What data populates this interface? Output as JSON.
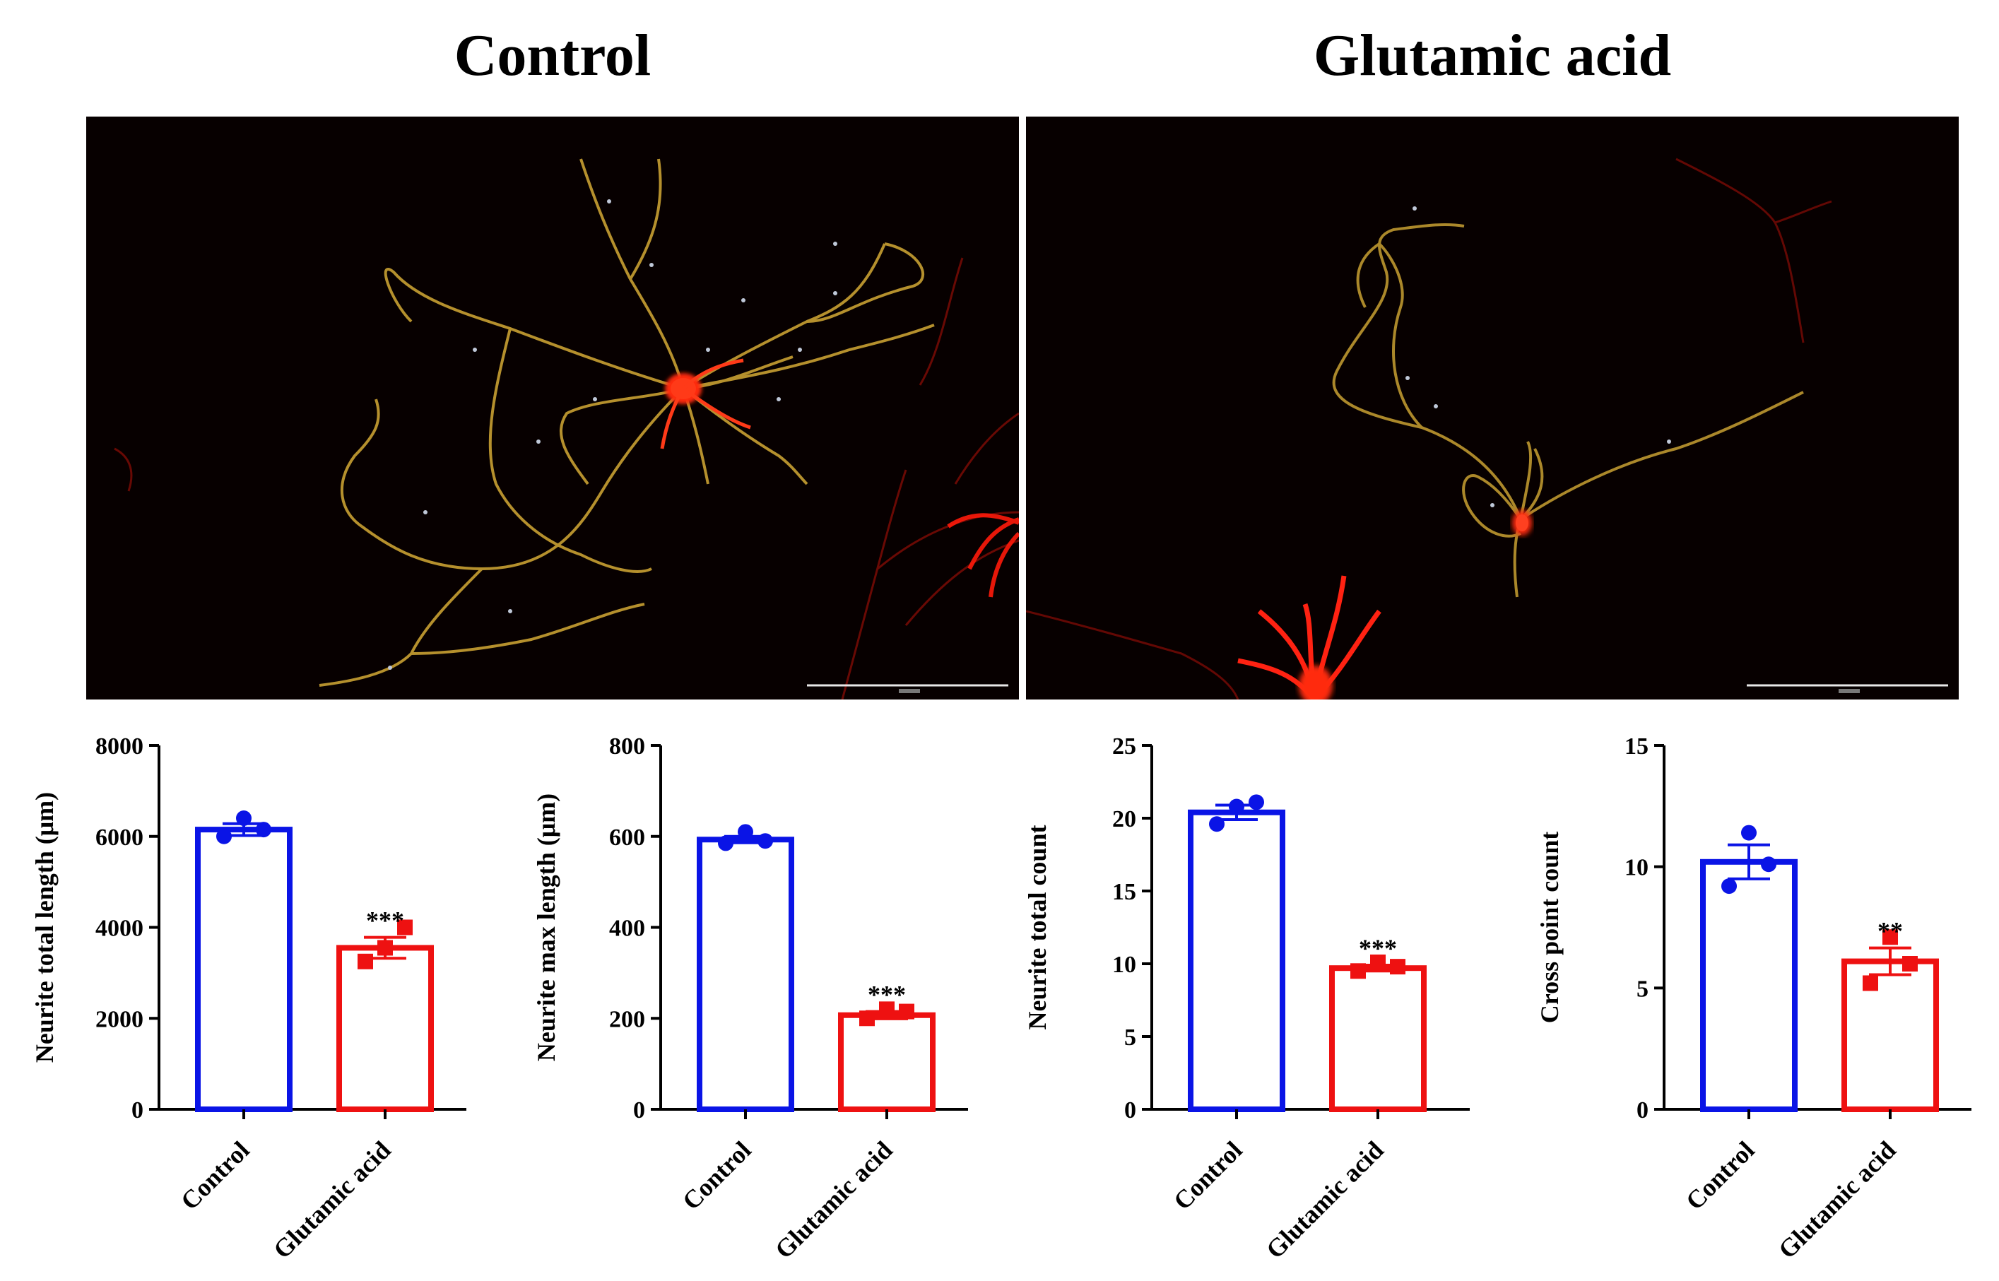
{
  "panels": [
    {
      "title": "Control"
    },
    {
      "title": "Glutamic acid"
    }
  ],
  "colors": {
    "control": "#0a14e6",
    "glutamic": "#ee1111",
    "neuron_red": "#ff2a10",
    "trace": "#c8a032"
  },
  "chart_data": [
    {
      "type": "bar",
      "categories": [
        "Control",
        "Glutamic acid"
      ],
      "values": [
        6150,
        3550
      ],
      "errors": [
        130,
        230
      ],
      "points": [
        [
          6000,
          6400,
          6150
        ],
        [
          3250,
          3550,
          4000
        ]
      ],
      "markers": [
        "circle",
        "square"
      ],
      "significance": [
        "",
        "***"
      ],
      "ylabel": "Neurite total length (μm)",
      "ylim": [
        0,
        8000
      ],
      "yticks": [
        "0",
        "2000",
        "4000",
        "6000",
        "8000"
      ]
    },
    {
      "type": "bar",
      "categories": [
        "Control",
        "Glutamic acid"
      ],
      "values": [
        593,
        207
      ],
      "errors": [
        7,
        8
      ],
      "points": [
        [
          585,
          610,
          590
        ],
        [
          200,
          220,
          215
        ]
      ],
      "markers": [
        "circle",
        "square"
      ],
      "significance": [
        "",
        "***"
      ],
      "ylabel": "Neurite max length (μm)",
      "ylim": [
        0,
        800
      ],
      "yticks": [
        "0",
        "200",
        "400",
        "600",
        "800"
      ]
    },
    {
      "type": "bar",
      "categories": [
        "Control",
        "Glutamic acid"
      ],
      "values": [
        20.4,
        9.7
      ],
      "errors": [
        0.5,
        0.2
      ],
      "points": [
        [
          19.6,
          20.8,
          21.1
        ],
        [
          9.5,
          10.1,
          9.8
        ]
      ],
      "markers": [
        "circle",
        "square"
      ],
      "significance": [
        "",
        "***"
      ],
      "ylabel": "Neurite total count",
      "ylim": [
        0,
        25
      ],
      "yticks": [
        "0",
        "5",
        "10",
        "15",
        "20",
        "25"
      ]
    },
    {
      "type": "bar",
      "categories": [
        "Control",
        "Glutamic acid"
      ],
      "values": [
        10.2,
        6.1
      ],
      "errors": [
        0.7,
        0.55
      ],
      "points": [
        [
          9.2,
          11.4,
          10.1
        ],
        [
          5.2,
          7.1,
          6.0
        ]
      ],
      "markers": [
        "circle",
        "square"
      ],
      "significance": [
        "",
        "**"
      ],
      "ylabel": "Cross point count",
      "ylim": [
        0,
        15
      ],
      "yticks": [
        "0",
        "5",
        "10",
        "15"
      ]
    }
  ]
}
